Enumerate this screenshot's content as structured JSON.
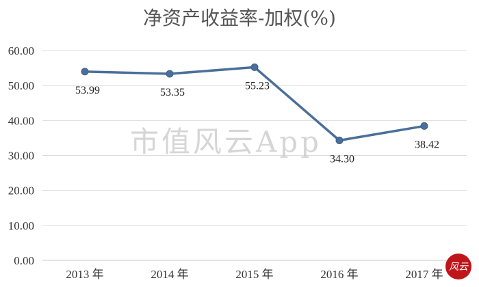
{
  "chart_data": {
    "type": "line",
    "title": "净资产收益率-加权(%)",
    "categories": [
      "2013 年",
      "2014 年",
      "2015 年",
      "2016 年",
      "2017 年"
    ],
    "series": [
      {
        "values": [
          53.99,
          53.35,
          55.23,
          34.3,
          38.42
        ],
        "labels": [
          "53.99",
          "53.35",
          "55.23",
          "34.30",
          "38.42"
        ],
        "color": "#4a6f9a"
      }
    ],
    "yticks": [
      "0.00",
      "10.00",
      "20.00",
      "30.00",
      "40.00",
      "50.00",
      "60.00"
    ],
    "ylim": [
      0,
      60
    ],
    "grid": true,
    "legend": "none"
  },
  "watermark": "市值风云App",
  "stamp": {
    "text": "风云",
    "color": "#c0141b"
  },
  "colors": {
    "line": "#4a6f9a",
    "marker": "#4a6f9a",
    "grid": "#dcdcdc",
    "axis": "#c8c8c8"
  }
}
